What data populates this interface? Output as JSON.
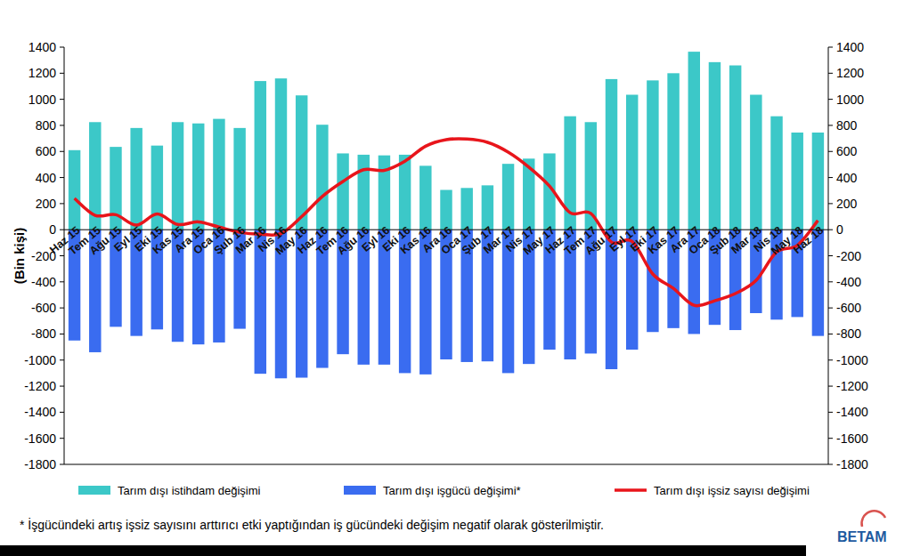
{
  "chart_data": {
    "type": "bar",
    "y_label": "(Bin kişi)",
    "categories": [
      "Haz 15",
      "Tem 15",
      "Ağu 15",
      "Eyl 15",
      "Eki 15",
      "Kas 15",
      "Ara 15",
      "Oca 16",
      "Şub 16",
      "Mar 16",
      "Nis 16",
      "May 16",
      "Haz 16",
      "Tem 16",
      "Ağu 16",
      "Eyl 16",
      "Eki 16",
      "Kas 16",
      "Ara 16",
      "Oca 17",
      "Şub 17",
      "Mar 17",
      "Nis 17",
      "May 17",
      "Haz 17",
      "Tem 17",
      "Ağu 17",
      "Eyl 17",
      "Eki 17",
      "Kas 17",
      "Ara 17",
      "Oca 18",
      "Şub 18",
      "Mar 18",
      "Nis 18",
      "May 18",
      "Haz 18"
    ],
    "series": [
      {
        "name": "Tarım dışı istihdam değişimi",
        "type": "bar",
        "color": "#3cc8c8",
        "values": [
          610,
          825,
          635,
          780,
          645,
          825,
          815,
          850,
          780,
          1140,
          1160,
          1030,
          805,
          585,
          575,
          570,
          575,
          490,
          305,
          320,
          340,
          505,
          545,
          585,
          870,
          825,
          1155,
          1035,
          1145,
          1200,
          1365,
          1285,
          1260,
          1035,
          870,
          745,
          745
        ]
      },
      {
        "name": "Tarım dışı işgücü değişimi*",
        "type": "bar",
        "color": "#3a6cf0",
        "values": [
          -850,
          -940,
          -745,
          -815,
          -765,
          -860,
          -880,
          -865,
          -760,
          -1105,
          -1140,
          -1135,
          -1060,
          -955,
          -1035,
          -1035,
          -1100,
          -1110,
          -995,
          -1015,
          -1010,
          -1100,
          -1030,
          -920,
          -995,
          -950,
          -1070,
          -920,
          -785,
          -755,
          -800,
          -730,
          -770,
          -640,
          -690,
          -670,
          -815
        ]
      },
      {
        "name": "Tarım dışı işsiz sayısı değişimi",
        "type": "line",
        "color": "#e8151b",
        "values": [
          240,
          110,
          115,
          35,
          120,
          40,
          60,
          20,
          -20,
          -35,
          -30,
          100,
          255,
          370,
          460,
          455,
          525,
          640,
          690,
          695,
          670,
          595,
          480,
          335,
          130,
          125,
          -95,
          -90,
          -340,
          -450,
          -580,
          -545,
          -490,
          -390,
          -170,
          -120,
          70
        ]
      }
    ],
    "ylim": [
      -1800,
      1400
    ],
    "yticks": [
      -1800,
      -1600,
      -1400,
      -1200,
      -1000,
      -800,
      -600,
      -400,
      -200,
      0,
      200,
      400,
      600,
      800,
      1000,
      1200,
      1400
    ],
    "y2lim": [
      -1800,
      1400
    ],
    "y2ticks": [
      -1800,
      -1600,
      -1400,
      -1200,
      -1000,
      -800,
      -600,
      -400,
      -200,
      0,
      200,
      400,
      600,
      800,
      1000,
      1200,
      1400
    ],
    "legend": "bottom",
    "annotations": [
      "* İşgücündeki artış işsiz sayısını arttırıcı etki yaptığından iş gücündeki değişim negatif olarak gösterilmiştir.",
      "BETAM"
    ]
  }
}
